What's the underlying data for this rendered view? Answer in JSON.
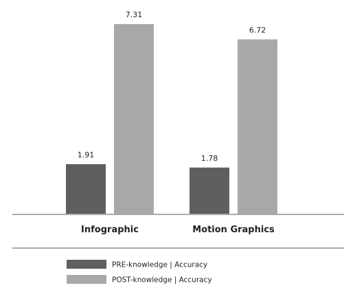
{
  "chart_data": {
    "type": "bar",
    "title": "",
    "xlabel": "",
    "ylabel": "",
    "ylim": [
      0,
      8
    ],
    "grid": false,
    "legend_position": "bottom-left",
    "categories": [
      "Infographic",
      "Motion Graphics"
    ],
    "series": [
      {
        "name": "PRE-knowledge | Accuracy",
        "values": [
          1.91,
          1.78
        ],
        "color": "#5f5f5f"
      },
      {
        "name": "POST-knowledge | Accuracy",
        "values": [
          7.31,
          6.72
        ],
        "color": "#a8a8aa"
      }
    ],
    "value_labels": [
      [
        "1.91",
        "1.78"
      ],
      [
        "7.31",
        "6.72"
      ]
    ]
  }
}
